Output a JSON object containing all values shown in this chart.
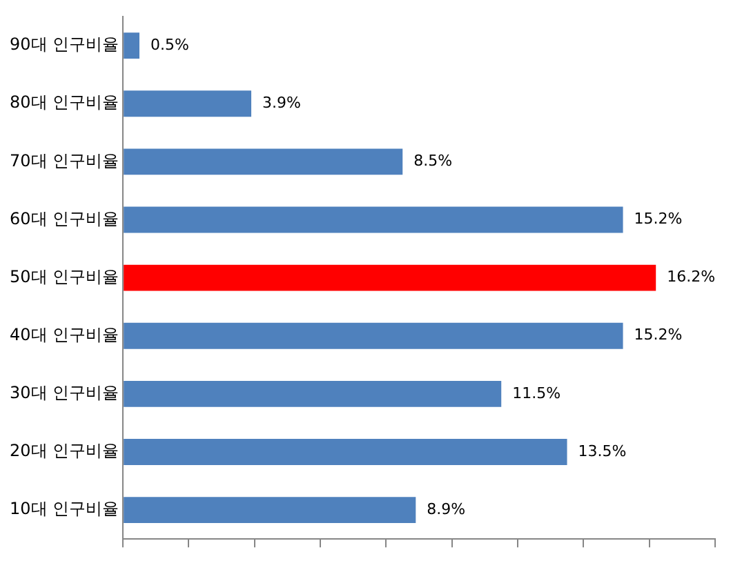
{
  "chart_data": {
    "type": "bar",
    "orientation": "horizontal",
    "categories": [
      "90대 인구비율",
      "80대 인구비율",
      "70대 인구비율",
      "60대 인구비율",
      "50대 인구비율",
      "40대 인구비율",
      "30대 인구비율",
      "20대 인구비율",
      "10대 인구비율"
    ],
    "values": [
      0.5,
      3.9,
      8.5,
      15.2,
      16.2,
      15.2,
      11.5,
      13.5,
      8.9
    ],
    "colors": [
      "#4f81bd",
      "#4f81bd",
      "#4f81bd",
      "#4f81bd",
      "#ff0000",
      "#4f81bd",
      "#4f81bd",
      "#4f81bd",
      "#4f81bd"
    ],
    "value_labels": [
      "0.5%",
      "3.9%",
      "8.5%",
      "15.2%",
      "16.2%",
      "15.2%",
      "11.5%",
      "13.5%",
      "8.9%"
    ],
    "xlim": [
      0,
      18
    ],
    "xticks": [
      {
        "value": 0,
        "label": null
      },
      {
        "value": 2,
        "label": null
      },
      {
        "value": 4,
        "label": null
      },
      {
        "value": 6,
        "label": null
      },
      {
        "value": 8,
        "label": null
      },
      {
        "value": 10,
        "label": null
      },
      {
        "value": 12,
        "label": null
      },
      {
        "value": 14,
        "label": null
      },
      {
        "value": 16,
        "label": null
      },
      {
        "value": 18,
        "label": null
      }
    ],
    "grid": false,
    "legend": false
  }
}
